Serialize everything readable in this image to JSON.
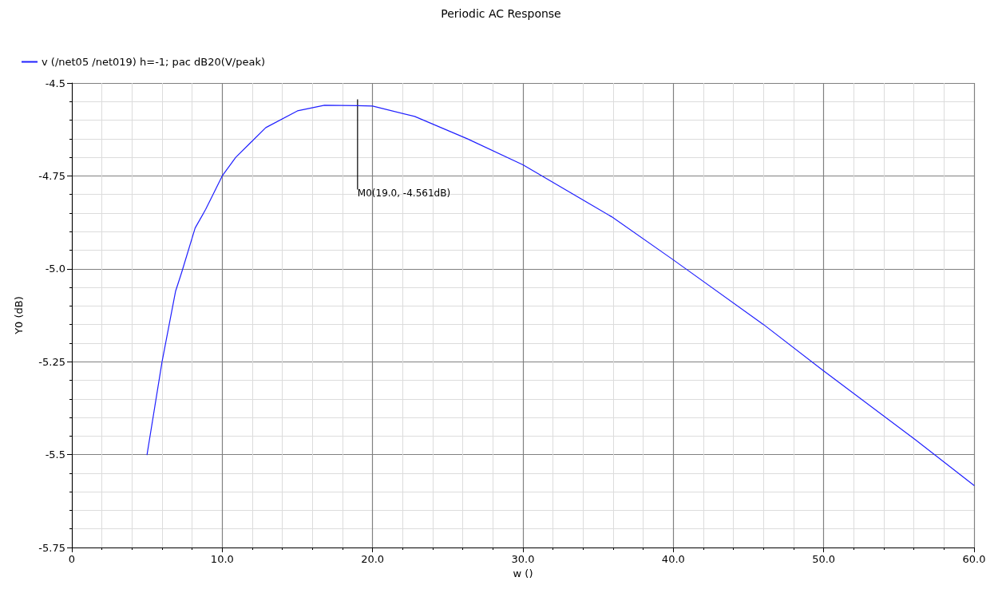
{
  "chart_data": {
    "type": "line",
    "title": "Periodic AC Response",
    "xlabel": "w ()",
    "ylabel": "Y0 (dB)",
    "x": [
      5,
      6,
      6.9,
      7.3,
      8.2,
      8.9,
      10,
      10.9,
      11.9,
      12.9,
      15,
      16.8,
      19,
      20,
      22.8,
      26.3,
      30,
      35.9,
      40,
      46,
      50,
      56.1,
      60
    ],
    "series": [
      {
        "name": "v (/net05 /net019) h=-1; pac dB20(V/peak)",
        "color": "#2020ff",
        "values": [
          -5.5,
          -5.25,
          -5.06,
          -5.01,
          -4.89,
          -4.84,
          -4.75,
          -4.7,
          -4.66,
          -4.62,
          -4.575,
          -4.56,
          -4.561,
          -4.562,
          -4.59,
          -4.65,
          -4.72,
          -4.86,
          -4.976,
          -5.15,
          -5.275,
          -5.46,
          -5.583
        ]
      }
    ],
    "xlim": [
      0,
      60
    ],
    "ylim": [
      -5.75,
      -4.5
    ],
    "xticks": [
      0,
      {
        "value": 10,
        "label": "10.0"
      },
      {
        "value": 20,
        "label": "20.0"
      },
      {
        "value": 30,
        "label": "30.0"
      },
      {
        "value": 40,
        "label": "40.0"
      },
      {
        "value": 50,
        "label": "50.0"
      },
      {
        "value": 60,
        "label": "60.0"
      }
    ],
    "yticks": [
      -5.75,
      -5.5,
      -5.25,
      {
        "value": -5,
        "label": "-5.0"
      },
      -4.75,
      -4.5
    ],
    "annotations": [
      {
        "text": "M0(19.0, -4.561dB)",
        "x": 19,
        "y": -4.561
      }
    ],
    "grid": true,
    "legend": "top left",
    "marker": "none",
    "line_style": "solid"
  }
}
